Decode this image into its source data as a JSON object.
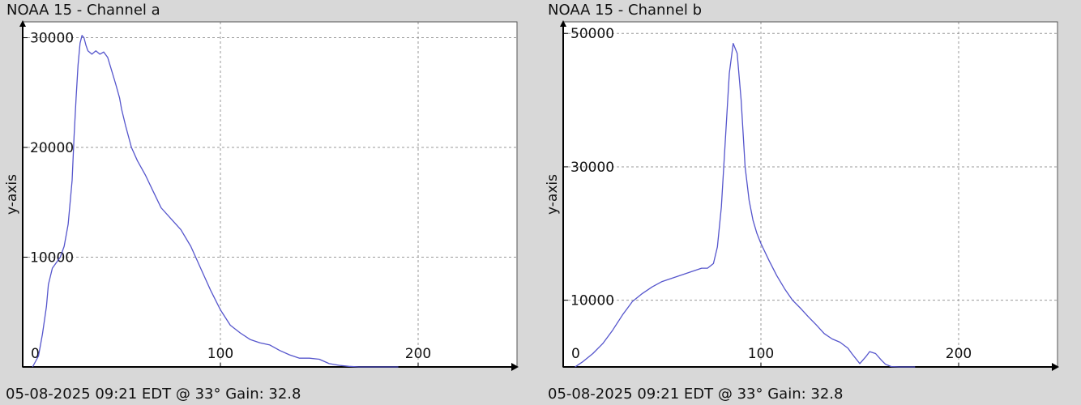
{
  "chart_data": [
    {
      "type": "line",
      "title": "NOAA 15 - Channel a",
      "ylabel": "y-axis",
      "footer": "05-08-2025 09:21 EDT @ 33° Gain: 32.8",
      "xlim": [
        0,
        250
      ],
      "ylim": [
        0,
        31000
      ],
      "x_ticks": [
        0,
        100,
        200
      ],
      "x_tick_labels": [
        "0",
        "100",
        "200"
      ],
      "y_ticks": [
        10000,
        20000,
        30000
      ],
      "y_tick_labels": [
        "10000",
        "20000",
        "30000"
      ],
      "grid": true,
      "series": [
        {
          "color": "#5555cc",
          "x": [
            5,
            8,
            10,
            12,
            13,
            15,
            17,
            19,
            21,
            23,
            25,
            26,
            27,
            28,
            29,
            30,
            31,
            32,
            33,
            35,
            37,
            39,
            41,
            43,
            45,
            47,
            49,
            50,
            52,
            55,
            58,
            62,
            66,
            70,
            75,
            80,
            85,
            90,
            95,
            100,
            105,
            110,
            115,
            120,
            125,
            130,
            135,
            140,
            145,
            150,
            155,
            160,
            165,
            170,
            175,
            180,
            185,
            190
          ],
          "values": [
            0,
            1000,
            3000,
            5500,
            7500,
            9000,
            9500,
            10000,
            11000,
            13000,
            17000,
            21000,
            24500,
            27500,
            29500,
            30200,
            30000,
            29300,
            28800,
            28500,
            28800,
            28500,
            28700,
            28200,
            27000,
            25800,
            24500,
            23500,
            22000,
            20000,
            18800,
            17500,
            16000,
            14500,
            13500,
            12500,
            11000,
            9000,
            7000,
            5200,
            3800,
            3100,
            2500,
            2200,
            2000,
            1500,
            1100,
            800,
            800,
            700,
            300,
            150,
            50,
            0,
            0,
            0,
            0,
            0
          ]
        }
      ]
    },
    {
      "type": "line",
      "title": "NOAA 15 - Channel b",
      "ylabel": "y-axis",
      "footer": "05-08-2025 09:21 EDT @ 33° Gain: 32.8",
      "xlim": [
        0,
        250
      ],
      "ylim": [
        0,
        51000
      ],
      "x_ticks": [
        0,
        100,
        200
      ],
      "x_tick_labels": [
        "0",
        "100",
        "200"
      ],
      "y_ticks": [
        10000,
        30000,
        50000
      ],
      "y_tick_labels": [
        "10000",
        "30000",
        "50000"
      ],
      "grid": true,
      "series": [
        {
          "color": "#5555cc",
          "x": [
            6,
            10,
            15,
            20,
            25,
            30,
            35,
            40,
            45,
            50,
            55,
            60,
            65,
            70,
            73,
            76,
            78,
            80,
            82,
            84,
            86,
            88,
            90,
            92,
            94,
            96,
            98,
            100,
            104,
            108,
            112,
            116,
            120,
            124,
            128,
            132,
            136,
            140,
            144,
            146,
            150,
            153,
            155,
            158,
            161,
            163,
            166,
            170,
            175,
            178
          ],
          "values": [
            0,
            800,
            2000,
            3500,
            5500,
            7800,
            9800,
            11000,
            12000,
            12800,
            13300,
            13800,
            14300,
            14800,
            14800,
            15500,
            18000,
            24000,
            34000,
            44000,
            48500,
            47000,
            40000,
            30000,
            25000,
            22000,
            20000,
            18500,
            16000,
            13700,
            11700,
            10000,
            8800,
            7500,
            6300,
            5000,
            4200,
            3700,
            2800,
            2000,
            500,
            1500,
            2300,
            2000,
            1000,
            400,
            50,
            0,
            0,
            0
          ]
        }
      ]
    }
  ]
}
